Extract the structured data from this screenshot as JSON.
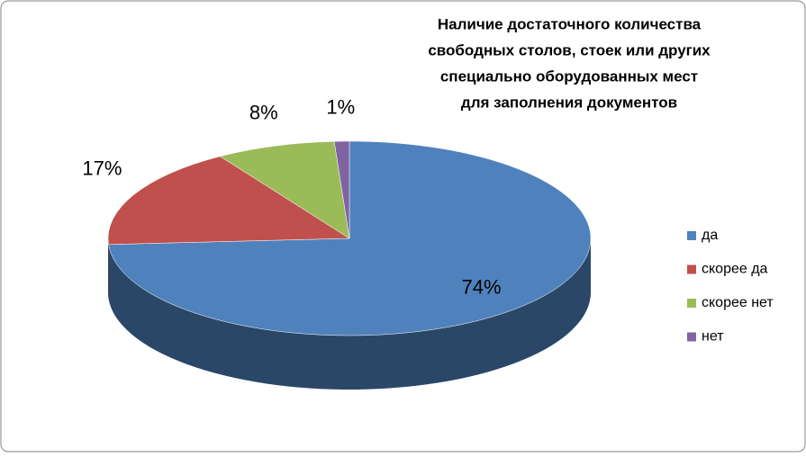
{
  "chart_data": {
    "type": "pie",
    "title": [
      "Наличие достаточного  количества",
      "свободных столов, стоек или других",
      "специально оборудованных мест",
      "для заполнения документов"
    ],
    "categories": [
      "да",
      "скорее да",
      "скорее нет",
      "нет"
    ],
    "values": [
      74,
      17,
      8,
      1
    ],
    "value_labels": [
      "74%",
      "17%",
      "8%",
      "1%"
    ],
    "colors": [
      "#4f81bd",
      "#c0504d",
      "#9bbb59",
      "#8064a2"
    ],
    "legend": "right"
  }
}
